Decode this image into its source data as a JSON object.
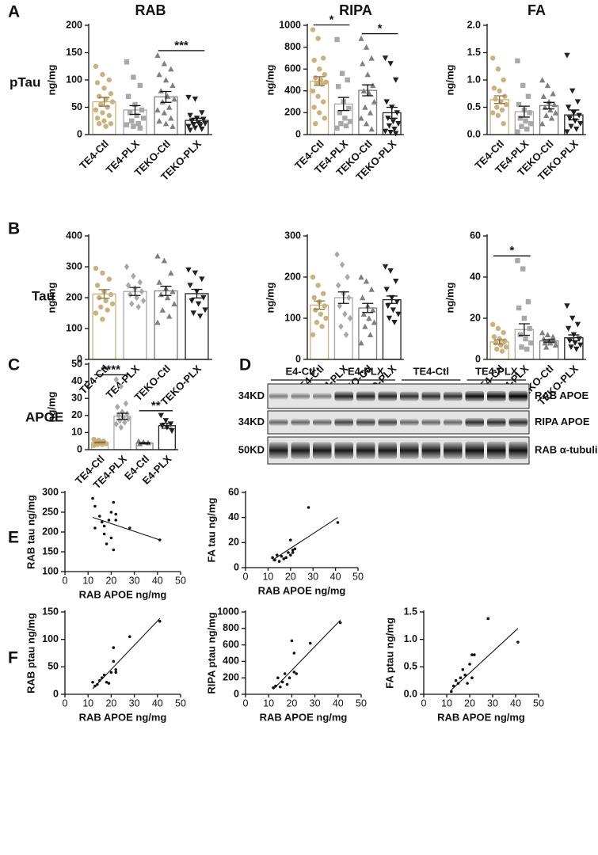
{
  "chart_data": [
    {
      "type": "bar",
      "panel": "A",
      "title": "RAB",
      "row_label": "pTau",
      "ylabel": "ng/mg",
      "categories": [
        "TE4-Ctl",
        "TE4-PLX",
        "TEKO-Ctl",
        "TEKO-PLX"
      ],
      "values": [
        60,
        45,
        69,
        26
      ],
      "errors": [
        8,
        8,
        10,
        4
      ],
      "colors": [
        "#c9b27c",
        "#a8a8a8",
        "#7f7f7f",
        "#222222"
      ],
      "markers": [
        "circle",
        "square",
        "triangle",
        "triangle-down"
      ],
      "points": [
        [
          125,
          110,
          100,
          95,
          85,
          75,
          70,
          65,
          60,
          55,
          50,
          45,
          40,
          35,
          30,
          25,
          20,
          20,
          15
        ],
        [
          133,
          105,
          90,
          70,
          55,
          45,
          40,
          35,
          30,
          25,
          20,
          18,
          15,
          12
        ],
        [
          145,
          130,
          120,
          110,
          100,
          90,
          80,
          70,
          65,
          60,
          50,
          45,
          40,
          30,
          25,
          20,
          15
        ],
        [
          68,
          65,
          40,
          35,
          30,
          28,
          25,
          22,
          20,
          18,
          16,
          15,
          12,
          10,
          8
        ]
      ],
      "significance": [
        {
          "between": [
            "TEKO-Ctl",
            "TEKO-PLX"
          ],
          "label": "***"
        }
      ],
      "ylim": [
        0,
        200
      ],
      "yticks": [
        0,
        50,
        100,
        150,
        200
      ]
    },
    {
      "type": "bar",
      "title": "RIPA",
      "ylabel": "ng/mg",
      "categories": [
        "TE4-Ctl",
        "TE4-PLX",
        "TEKO-Ctl",
        "TEKO-PLX"
      ],
      "values": [
        490,
        280,
        405,
        200
      ],
      "errors": [
        40,
        60,
        50,
        50
      ],
      "colors": [
        "#c9b27c",
        "#a8a8a8",
        "#7f7f7f",
        "#222222"
      ],
      "markers": [
        "circle",
        "square",
        "triangle",
        "triangle-down"
      ],
      "points": [
        [
          960,
          880,
          700,
          680,
          600,
          550,
          520,
          500,
          480,
          470,
          460,
          400,
          350,
          300,
          250,
          200,
          150,
          100
        ],
        [
          870,
          560,
          500,
          440,
          300,
          240,
          200,
          150,
          120,
          100,
          80,
          60
        ],
        [
          880,
          800,
          700,
          650,
          550,
          450,
          400,
          380,
          300,
          250,
          200,
          150,
          100,
          50
        ],
        [
          700,
          650,
          500,
          300,
          250,
          200,
          150,
          120,
          100,
          80,
          50,
          30,
          20,
          10
        ]
      ],
      "significance": [
        {
          "between": [
            "TE4-Ctl",
            "TE4-PLX"
          ],
          "label": "*"
        },
        {
          "between": [
            "TEKO-Ctl",
            "TEKO-PLX"
          ],
          "label": "*"
        }
      ],
      "ylim": [
        0,
        1000
      ],
      "yticks": [
        0,
        200,
        400,
        600,
        800,
        1000
      ]
    },
    {
      "type": "bar",
      "title": "FA",
      "ylabel": "ng/mg",
      "categories": [
        "TE4-Ctl",
        "TE4-PLX",
        "TEKO-Ctl",
        "TEKO-PLX"
      ],
      "values": [
        0.64,
        0.42,
        0.53,
        0.36
      ],
      "errors": [
        0.07,
        0.1,
        0.06,
        0.09
      ],
      "colors": [
        "#c9b27c",
        "#a8a8a8",
        "#7f7f7f",
        "#222222"
      ],
      "markers": [
        "circle",
        "square",
        "triangle",
        "triangle-down"
      ],
      "points": [
        [
          1.4,
          1.2,
          1.0,
          0.85,
          0.8,
          0.7,
          0.65,
          0.6,
          0.55,
          0.5,
          0.45,
          0.4,
          0.35,
          0.2
        ],
        [
          1.35,
          0.9,
          0.7,
          0.55,
          0.45,
          0.4,
          0.3,
          0.25,
          0.2,
          0.15,
          0.1,
          0.05
        ],
        [
          1.0,
          0.9,
          0.75,
          0.7,
          0.6,
          0.55,
          0.5,
          0.45,
          0.4,
          0.35,
          0.3,
          0.2
        ],
        [
          1.45,
          0.8,
          0.6,
          0.5,
          0.4,
          0.35,
          0.3,
          0.25,
          0.2,
          0.15,
          0.1,
          0.05
        ]
      ],
      "ylim": [
        0,
        2
      ],
      "yticks": [
        {
          "value": 0,
          "label": "0.0"
        },
        0.5,
        {
          "value": 1,
          "label": "1.0"
        },
        1.5,
        {
          "value": 2,
          "label": "2.0"
        }
      ]
    },
    {
      "type": "bar",
      "panel": "B",
      "row_label": "Tau",
      "ylabel": "ng/mg",
      "categories": [
        "TE4-Ctl",
        "TE4-PLX",
        "TEKO-Ctl",
        "TEKO-PLX"
      ],
      "values": [
        212,
        220,
        222,
        213
      ],
      "errors": [
        14,
        13,
        15,
        14
      ],
      "colors": [
        "#c9b27c",
        "#a8a8a8",
        "#7f7f7f",
        "#222222"
      ],
      "markers": [
        "circle",
        "diamond",
        "triangle",
        "triangle-down"
      ],
      "points": [
        [
          295,
          280,
          260,
          240,
          220,
          210,
          200,
          190,
          180,
          170,
          160,
          150,
          130
        ],
        [
          300,
          270,
          250,
          240,
          230,
          220,
          210,
          200,
          190,
          180,
          170
        ],
        [
          335,
          320,
          280,
          250,
          230,
          220,
          210,
          200,
          180,
          160,
          140,
          120
        ],
        [
          290,
          280,
          260,
          240,
          220,
          200,
          190,
          180,
          160,
          150,
          140
        ]
      ],
      "ylim": [
        0,
        400
      ],
      "yticks": [
        0,
        100,
        200,
        300,
        400
      ]
    },
    {
      "type": "bar",
      "ylabel": "ng/mg",
      "categories": [
        "TE4-Ctl",
        "TE4-PLX",
        "TEKO-Ctl",
        "TEKO-PLX"
      ],
      "values": [
        132,
        150,
        125,
        145
      ],
      "errors": [
        10,
        14,
        11,
        9
      ],
      "colors": [
        "#c9b27c",
        "#a8a8a8",
        "#7f7f7f",
        "#222222"
      ],
      "markers": [
        "circle",
        "diamond",
        "triangle",
        "triangle-down"
      ],
      "points": [
        [
          200,
          180,
          160,
          150,
          140,
          130,
          120,
          110,
          100,
          90,
          80,
          60
        ],
        [
          255,
          230,
          200,
          180,
          160,
          150,
          130,
          110,
          100,
          80,
          60
        ],
        [
          200,
          190,
          170,
          150,
          130,
          120,
          110,
          100,
          90,
          80,
          60,
          40
        ],
        [
          225,
          215,
          190,
          170,
          150,
          140,
          130,
          120,
          110,
          100,
          90
        ]
      ],
      "ylim": [
        0,
        300
      ],
      "yticks": [
        0,
        100,
        200,
        300
      ]
    },
    {
      "type": "bar",
      "ylabel": "ng/mg",
      "categories": [
        "TE4-Ctl",
        "TE4-PLX",
        "TEKO-Ctl",
        "TEKO-PLX"
      ],
      "values": [
        8.5,
        14.5,
        9,
        10.5
      ],
      "errors": [
        1,
        2.8,
        0.6,
        1.4
      ],
      "colors": [
        "#c9b27c",
        "#a8a8a8",
        "#7f7f7f",
        "#222222"
      ],
      "markers": [
        "circle",
        "square",
        "triangle",
        "triangle-down"
      ],
      "points": [
        [
          17,
          15,
          13,
          11,
          10,
          9,
          8,
          7,
          6,
          5,
          4
        ],
        [
          48,
          44,
          28,
          25,
          20,
          15,
          12,
          10,
          8,
          6,
          5
        ],
        [
          13,
          12,
          11,
          10,
          9,
          9,
          8,
          8,
          7,
          6
        ],
        [
          26,
          20,
          17,
          15,
          12,
          10,
          9,
          8,
          7,
          6,
          5
        ]
      ],
      "significance": [
        {
          "between": [
            "TE4-Ctl",
            "TE4-PLX"
          ],
          "label": "*"
        }
      ],
      "ylim": [
        0,
        60
      ],
      "yticks": [
        0,
        20,
        40,
        60
      ]
    },
    {
      "type": "bar",
      "panel": "C",
      "row_label": "APOE",
      "ylabel": "ng/mg",
      "categories": [
        "TE4-Ctl",
        "TE4-PLX",
        "E4-Ctl",
        "E4-PLX"
      ],
      "values": [
        4.2,
        19.5,
        3.8,
        14
      ],
      "errors": [
        0.3,
        1.8,
        0.4,
        1.5
      ],
      "colors": [
        "#c9b27c",
        "#a8a8a8",
        "#7f7f7f",
        "#222222"
      ],
      "markers": [
        "circle",
        "diamond",
        "triangle",
        "triangle-down"
      ],
      "points": [
        [
          6,
          5.5,
          5,
          4.5,
          4.5,
          4,
          4,
          3.5,
          3.5,
          3,
          3,
          2.5
        ],
        [
          41,
          37,
          27,
          25,
          22,
          21,
          20,
          19,
          18,
          17,
          16,
          15,
          13
        ],
        [
          5,
          4.5,
          4,
          3.5
        ],
        [
          20,
          17,
          15,
          14,
          13,
          11
        ]
      ],
      "significance": [
        {
          "between": [
            "TE4-Ctl",
            "TE4-PLX"
          ],
          "label": "****"
        },
        {
          "between": [
            "E4-Ctl",
            "E4-PLX"
          ],
          "label": "**"
        }
      ],
      "ylim": [
        0,
        50
      ],
      "yticks": [
        0,
        10,
        20,
        30,
        40,
        50
      ]
    },
    {
      "type": "scatter",
      "panel": "E",
      "ylabel": "RAB tau ng/mg",
      "xlabel": "RAB APOE ng/mg",
      "x": [
        12,
        13,
        13,
        15,
        16,
        17,
        17,
        18,
        19,
        20,
        20,
        21,
        21,
        22,
        22,
        28,
        41
      ],
      "values": [
        285,
        265,
        210,
        240,
        225,
        215,
        195,
        170,
        230,
        250,
        185,
        275,
        155,
        230,
        245,
        210,
        180
      ],
      "trendline": {
        "x": [
          12,
          41
        ],
        "y": [
          237,
          180
        ]
      },
      "xlim": [
        0,
        50
      ],
      "xticks": [
        0,
        10,
        20,
        30,
        40,
        50
      ],
      "ylim": [
        100,
        300
      ],
      "yticks": [
        100,
        150,
        200,
        250,
        300
      ]
    },
    {
      "type": "scatter",
      "ylabel": "FA tau ng/mg",
      "xlabel": "RAB APOE ng/mg",
      "x": [
        12,
        13,
        14,
        15,
        16,
        17,
        18,
        19,
        20,
        20,
        21,
        21,
        22,
        28,
        41
      ],
      "values": [
        8,
        6,
        10,
        5,
        9,
        7,
        8,
        12,
        10,
        22,
        14,
        12,
        15,
        48,
        36
      ],
      "trendline": {
        "x": [
          12,
          41
        ],
        "y": [
          6,
          40
        ]
      },
      "xlim": [
        0,
        50
      ],
      "xticks": [
        0,
        10,
        20,
        30,
        40,
        50
      ],
      "ylim": [
        0,
        60
      ],
      "yticks": [
        0,
        20,
        40,
        60
      ]
    },
    {
      "type": "scatter",
      "panel": "F",
      "ylabel": "RAB ptau ng/mg",
      "xlabel": "RAB APOE ng/mg",
      "x": [
        12,
        13,
        14,
        15,
        16,
        17,
        18,
        19,
        20,
        21,
        21,
        22,
        22,
        28,
        41
      ],
      "values": [
        22,
        15,
        18,
        25,
        30,
        35,
        22,
        20,
        40,
        85,
        60,
        45,
        40,
        105,
        133
      ],
      "trendline": {
        "x": [
          12,
          41
        ],
        "y": [
          10,
          138
        ]
      },
      "xlim": [
        0,
        50
      ],
      "xticks": [
        0,
        10,
        20,
        30,
        40,
        50
      ],
      "ylim": [
        0,
        150
      ],
      "yticks": [
        0,
        50,
        100,
        150
      ]
    },
    {
      "type": "scatter",
      "ylabel": "RIPA ptau ng/mg",
      "xlabel": "RAB APOE ng/mg",
      "x": [
        12,
        13,
        14,
        15,
        16,
        17,
        18,
        19,
        20,
        21,
        21,
        22,
        28,
        41
      ],
      "values": [
        80,
        100,
        200,
        90,
        150,
        250,
        120,
        200,
        650,
        500,
        270,
        250,
        620,
        870
      ],
      "trendline": {
        "x": [
          12,
          41
        ],
        "y": [
          60,
          900
        ]
      },
      "xlim": [
        0,
        50
      ],
      "xticks": [
        0,
        10,
        20,
        30,
        40,
        50
      ],
      "ylim": [
        0,
        1000
      ],
      "yticks": [
        0,
        200,
        400,
        600,
        800,
        1000
      ]
    },
    {
      "type": "scatter",
      "ylabel": "FA ptau ng/mg",
      "xlabel": "RAB APOE ng/mg",
      "x": [
        12,
        13,
        14,
        15,
        16,
        17,
        18,
        19,
        20,
        21,
        21,
        22,
        28,
        41
      ],
      "values": [
        0.05,
        0.15,
        0.25,
        0.2,
        0.3,
        0.45,
        0.35,
        0.2,
        0.55,
        0.72,
        0.3,
        0.72,
        1.38,
        0.95
      ],
      "trendline": {
        "x": [
          12,
          41
        ],
        "y": [
          0.08,
          1.2
        ]
      },
      "xlim": [
        0,
        50
      ],
      "xticks": [
        0,
        10,
        20,
        30,
        40,
        50
      ],
      "ylim": [
        0,
        1.5
      ],
      "yticks": [
        {
          "value": 0,
          "label": "0.0"
        },
        0.5,
        {
          "value": 1,
          "label": "1.0"
        },
        1.5
      ]
    }
  ],
  "blot": {
    "panel": "D",
    "groups": [
      "E4-Ctl",
      "E4-PLX",
      "TE4-Ctl",
      "TE4-PLX"
    ],
    "rows": [
      {
        "marker": "34KD",
        "label": "RAB APOE"
      },
      {
        "marker": "34KD",
        "label": "RIPA APOE"
      },
      {
        "marker": "50KD",
        "label": "RAB α-tubulin"
      }
    ]
  }
}
